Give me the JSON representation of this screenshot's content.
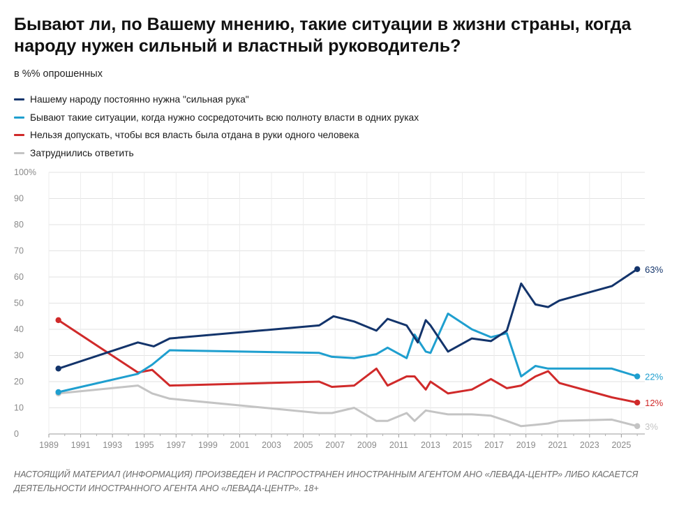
{
  "chart_data": {
    "type": "line",
    "title": "Бывают ли, по Вашему мнению, такие ситуации в жизни страны, когда народу нужен сильный и властный руководитель?",
    "subtitle": "в %% опрошенных",
    "ylim": [
      0,
      100
    ],
    "xlim": [
      1989,
      2026.3
    ],
    "yticks": [
      {
        "value": 0,
        "label": "0"
      },
      {
        "value": 10,
        "label": "10"
      },
      {
        "value": 20,
        "label": "20"
      },
      {
        "value": 30,
        "label": "30"
      },
      {
        "value": 40,
        "label": "40"
      },
      {
        "value": 50,
        "label": "50"
      },
      {
        "value": 60,
        "label": "60"
      },
      {
        "value": 70,
        "label": "70"
      },
      {
        "value": 80,
        "label": "80"
      },
      {
        "value": 90,
        "label": "90"
      },
      {
        "value": 100,
        "label": "100%"
      }
    ],
    "xticks": [
      {
        "value": 1989,
        "label": "1989"
      },
      {
        "value": 1991,
        "label": "1991"
      },
      {
        "value": 1993,
        "label": "1993"
      },
      {
        "value": 1995,
        "label": "1995"
      },
      {
        "value": 1997,
        "label": "1997"
      },
      {
        "value": 1999,
        "label": "1999"
      },
      {
        "value": 2001,
        "label": "2001"
      },
      {
        "value": 2003,
        "label": "2003"
      },
      {
        "value": 2005,
        "label": "2005"
      },
      {
        "value": 2007,
        "label": "2007"
      },
      {
        "value": 2009,
        "label": "2009"
      },
      {
        "value": 2011,
        "label": "2011"
      },
      {
        "value": 2013,
        "label": "2013"
      },
      {
        "value": 2015,
        "label": "2015"
      },
      {
        "value": 2017,
        "label": "2017"
      },
      {
        "value": 2019,
        "label": "2019"
      },
      {
        "value": 2021,
        "label": "2021"
      },
      {
        "value": 2023,
        "label": "2023"
      },
      {
        "value": 2025,
        "label": "2025"
      }
    ],
    "grid": true,
    "series": [
      {
        "name": "Нашему народу постоянно нужна \"сильная рука\"",
        "color": "#13346b",
        "end_label": "63%",
        "points": [
          [
            1989.6,
            25
          ],
          [
            1994.6,
            35
          ],
          [
            1995.6,
            33.5
          ],
          [
            1996.6,
            36.5
          ],
          [
            2006.0,
            41.5
          ],
          [
            2006.9,
            45
          ],
          [
            2008.2,
            43
          ],
          [
            2009.6,
            39.5
          ],
          [
            2010.3,
            44
          ],
          [
            2011.5,
            41.5
          ],
          [
            2012.2,
            35
          ],
          [
            2012.7,
            43.5
          ],
          [
            2013.0,
            41.5
          ],
          [
            2014.1,
            31.5
          ],
          [
            2015.6,
            36.5
          ],
          [
            2016.8,
            35.5
          ],
          [
            2017.8,
            39.5
          ],
          [
            2018.7,
            57.5
          ],
          [
            2019.6,
            49.5
          ],
          [
            2020.4,
            48.5
          ],
          [
            2021.1,
            51
          ],
          [
            2024.4,
            56.5
          ],
          [
            2026.0,
            63
          ]
        ]
      },
      {
        "name": "Бывают такие ситуации, когда нужно сосредоточить всю полноту власти в одних руках",
        "color": "#1f9fcf",
        "end_label": "22%",
        "points": [
          [
            1989.6,
            16
          ],
          [
            1994.6,
            23
          ],
          [
            1995.5,
            26.5
          ],
          [
            1996.6,
            32
          ],
          [
            2006.0,
            31
          ],
          [
            2006.8,
            29.5
          ],
          [
            2008.2,
            29
          ],
          [
            2009.6,
            30.5
          ],
          [
            2010.3,
            33
          ],
          [
            2011.5,
            29
          ],
          [
            2012.0,
            38
          ],
          [
            2012.7,
            31.5
          ],
          [
            2013.0,
            31
          ],
          [
            2014.1,
            46
          ],
          [
            2015.6,
            40
          ],
          [
            2016.8,
            37
          ],
          [
            2017.8,
            38.5
          ],
          [
            2018.7,
            22
          ],
          [
            2019.6,
            26
          ],
          [
            2020.4,
            25
          ],
          [
            2021.1,
            25
          ],
          [
            2024.4,
            25
          ],
          [
            2026.0,
            22
          ]
        ]
      },
      {
        "name": "Нельзя допускать, чтобы вся власть была отдана в руки одного человека",
        "color": "#d02a2a",
        "end_label": "12%",
        "points": [
          [
            1989.6,
            43.5
          ],
          [
            1994.6,
            23.5
          ],
          [
            1995.5,
            24.5
          ],
          [
            1996.6,
            18.5
          ],
          [
            2006.0,
            20
          ],
          [
            2006.8,
            18
          ],
          [
            2008.2,
            18.5
          ],
          [
            2009.6,
            25
          ],
          [
            2010.3,
            18.5
          ],
          [
            2011.5,
            22
          ],
          [
            2012.0,
            22
          ],
          [
            2012.7,
            17
          ],
          [
            2013.0,
            20
          ],
          [
            2014.1,
            15.5
          ],
          [
            2015.6,
            17
          ],
          [
            2016.8,
            21
          ],
          [
            2017.8,
            17.5
          ],
          [
            2018.7,
            18.5
          ],
          [
            2019.6,
            22
          ],
          [
            2020.4,
            24
          ],
          [
            2021.1,
            19.5
          ],
          [
            2024.4,
            14
          ],
          [
            2026.0,
            12
          ]
        ]
      },
      {
        "name": "Затруднились ответить",
        "color": "#c4c4c4",
        "end_label": "3%",
        "points": [
          [
            1989.6,
            15.5
          ],
          [
            1994.6,
            18.5
          ],
          [
            1995.5,
            15.5
          ],
          [
            1996.6,
            13.5
          ],
          [
            2006.0,
            8
          ],
          [
            2006.8,
            8
          ],
          [
            2008.2,
            10
          ],
          [
            2009.6,
            5
          ],
          [
            2010.3,
            5
          ],
          [
            2011.5,
            8
          ],
          [
            2012.0,
            5
          ],
          [
            2012.7,
            9
          ],
          [
            2014.1,
            7.5
          ],
          [
            2015.6,
            7.5
          ],
          [
            2016.8,
            7
          ],
          [
            2017.8,
            5
          ],
          [
            2018.7,
            3
          ],
          [
            2019.6,
            3.5
          ],
          [
            2020.4,
            4
          ],
          [
            2021.1,
            5
          ],
          [
            2024.4,
            5.5
          ],
          [
            2026.0,
            3
          ]
        ]
      }
    ]
  },
  "footnote": "НАСТОЯЩИЙ МАТЕРИАЛ (ИНФОРМАЦИЯ) ПРОИЗВЕДЕН И РАСПРОСТРАНЕН ИНОСТРАННЫМ АГЕНТОМ АНО «ЛЕВАДА-ЦЕНТР» ЛИБО КАСАЕТСЯ ДЕЯТЕЛЬНОСТИ ИНОСТРАННОГО АГЕНТА АНО «ЛЕВАДА-ЦЕНТР». 18+"
}
